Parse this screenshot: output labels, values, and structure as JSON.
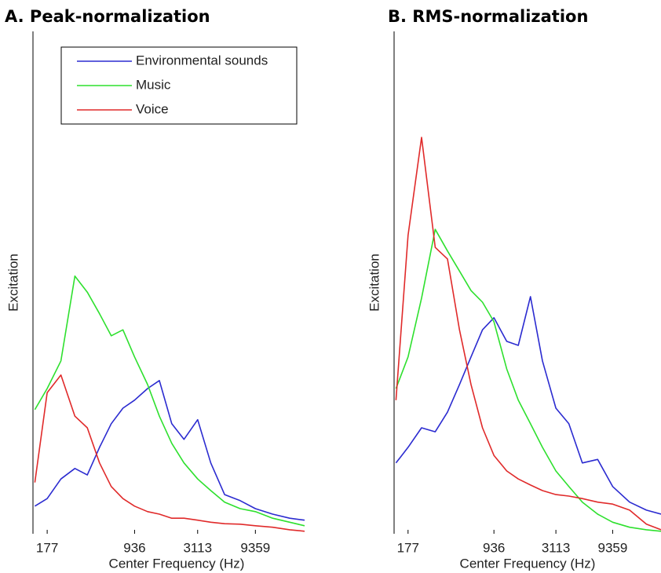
{
  "chart_data": [
    {
      "type": "line",
      "title": "A. Peak-normalization",
      "xlabel": "Center Frequency (Hz)",
      "ylabel": "Excitation",
      "xscale": "log",
      "xlim": [
        135,
        23900
      ],
      "ylim": [
        0,
        100
      ],
      "xticks": [
        177,
        936,
        3113,
        9359
      ],
      "legend": "upper right",
      "x": [
        140,
        177,
        230,
        300,
        380,
        480,
        600,
        750,
        936,
        1200,
        1500,
        1900,
        2400,
        3113,
        4000,
        5200,
        7000,
        9359,
        13000,
        18000,
        23900
      ],
      "series": [
        {
          "name": "Environmental sounds",
          "color": "#2b2bd0",
          "values": [
            5.5,
            7.0,
            10.9,
            13.0,
            11.7,
            17.2,
            21.9,
            25.0,
            26.6,
            28.9,
            30.5,
            21.9,
            18.8,
            22.7,
            14.1,
            7.8,
            6.6,
            5.0,
            3.9,
            3.1,
            2.7
          ]
        },
        {
          "name": "Music",
          "color": "#2ee02e",
          "values": [
            24.7,
            28.9,
            34.4,
            51.3,
            48.1,
            43.8,
            39.4,
            40.6,
            35.2,
            29.7,
            23.4,
            18.0,
            14.1,
            10.9,
            8.6,
            6.3,
            5.0,
            4.4,
            3.1,
            2.3,
            1.6
          ]
        },
        {
          "name": "Voice",
          "color": "#e02a2a",
          "values": [
            10.2,
            28.1,
            31.6,
            23.4,
            21.1,
            14.1,
            9.4,
            7.0,
            5.5,
            4.4,
            3.9,
            3.1,
            3.1,
            2.7,
            2.3,
            2.0,
            1.9,
            1.6,
            1.3,
            0.8,
            0.5
          ]
        }
      ]
    },
    {
      "type": "line",
      "title": "B. RMS-normalization",
      "xlabel": "Center Frequency (Hz)",
      "ylabel": "Excitation",
      "xscale": "log",
      "xlim": [
        135,
        23900
      ],
      "ylim": [
        0,
        100
      ],
      "xticks": [
        177,
        936,
        3113,
        9359
      ],
      "x": [
        140,
        177,
        230,
        300,
        380,
        480,
        600,
        750,
        936,
        1200,
        1500,
        1900,
        2400,
        3113,
        4000,
        5200,
        7000,
        9359,
        13000,
        18000,
        23900
      ],
      "series": [
        {
          "color": "#2b2bd0",
          "values": [
            14.1,
            17.2,
            21.1,
            20.3,
            24.2,
            29.7,
            35.2,
            40.6,
            43.0,
            38.3,
            37.5,
            47.2,
            34.4,
            25.0,
            21.9,
            14.1,
            14.8,
            9.4,
            6.3,
            4.7,
            3.9
          ]
        },
        {
          "color": "#2ee02e",
          "values": [
            28.9,
            35.2,
            46.9,
            60.6,
            56.3,
            52.3,
            48.4,
            46.1,
            42.2,
            32.8,
            26.6,
            21.9,
            17.2,
            12.5,
            9.4,
            6.3,
            3.9,
            2.3,
            1.3,
            0.8,
            0.5
          ]
        },
        {
          "color": "#e02a2a",
          "values": [
            26.6,
            59.4,
            78.9,
            57.0,
            54.7,
            40.6,
            29.7,
            21.1,
            15.6,
            12.5,
            10.9,
            9.7,
            8.6,
            7.8,
            7.5,
            7.0,
            6.3,
            5.9,
            4.7,
            1.9,
            0.8
          ]
        }
      ]
    }
  ]
}
